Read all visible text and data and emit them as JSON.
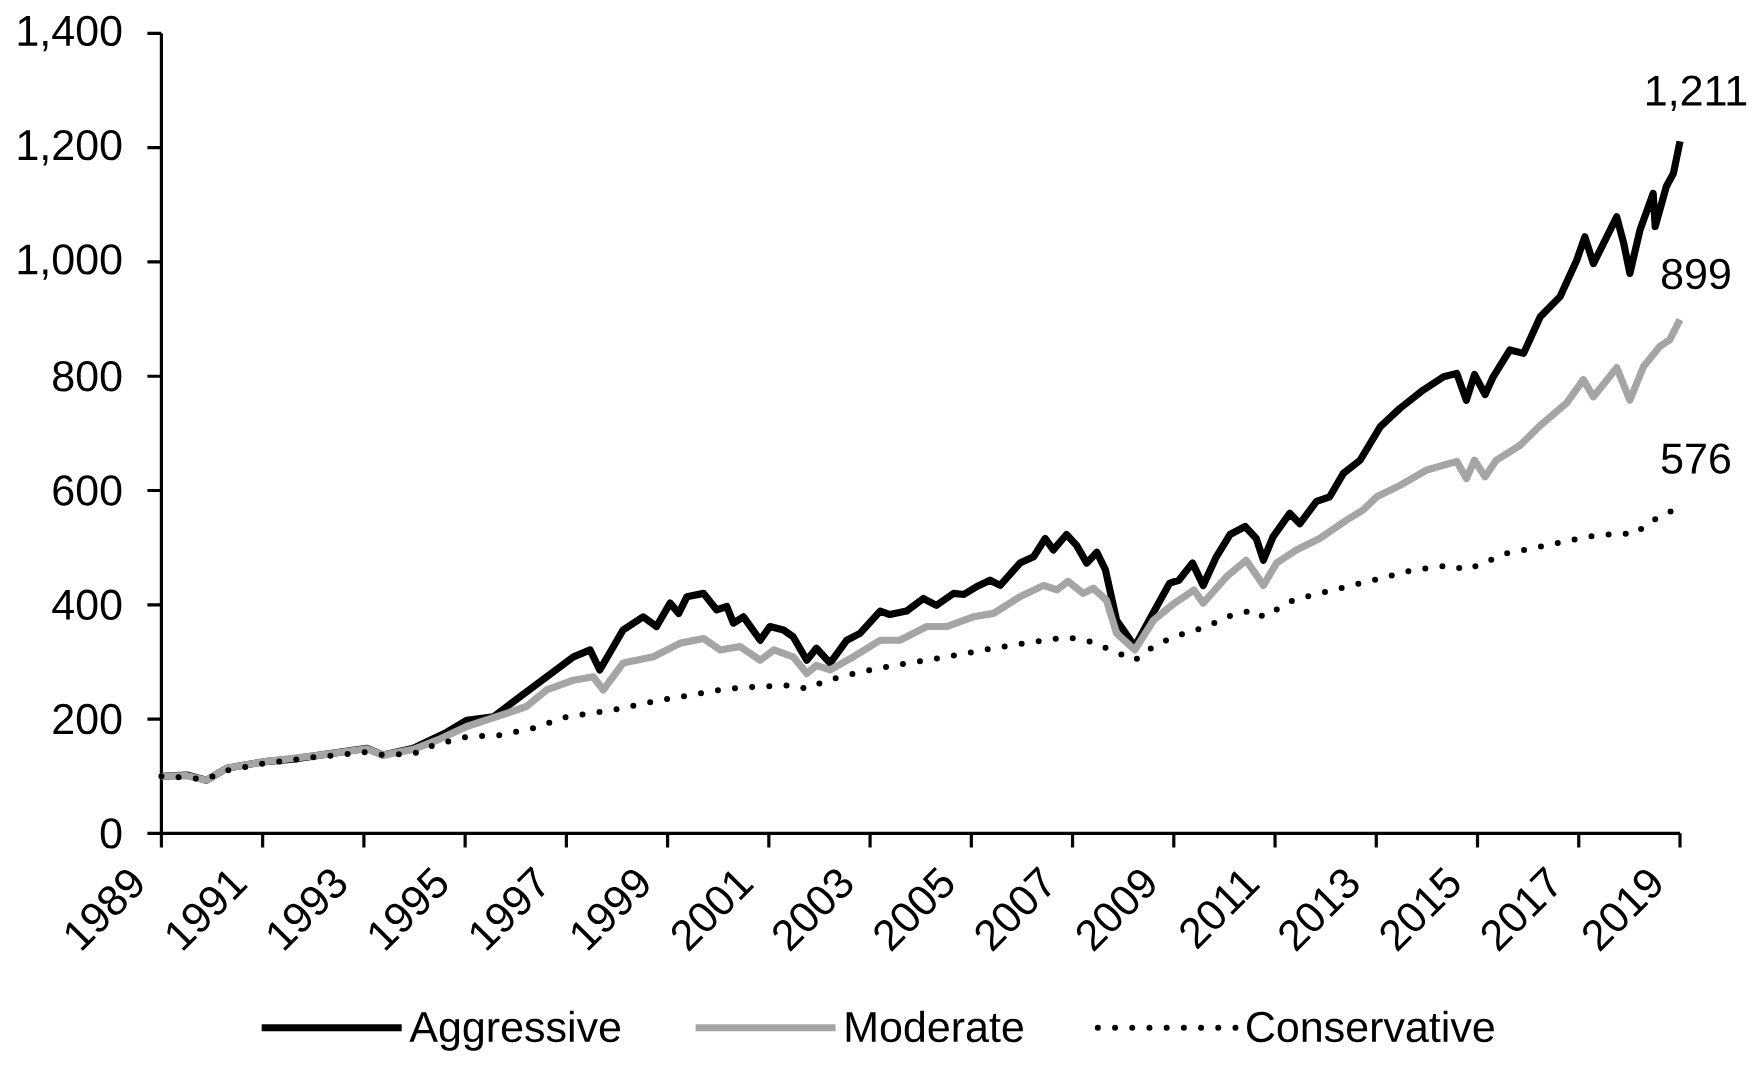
{
  "chart_data": {
    "type": "line",
    "xlim": [
      1989,
      2019
    ],
    "xticks": [
      1989,
      1991,
      1993,
      1995,
      1997,
      1999,
      2001,
      2003,
      2005,
      2007,
      2009,
      2011,
      2013,
      2015,
      2017,
      2019
    ],
    "ylim": [
      0,
      1400
    ],
    "yticks": [
      0,
      200,
      400,
      600,
      800,
      {
        "value": 1000,
        "label": "1,000"
      },
      {
        "value": 1200,
        "label": "1,200"
      },
      {
        "value": 1400,
        "label": "1,400"
      }
    ],
    "legend": "bottom",
    "series": [
      {
        "name": "Aggressive",
        "color": "#000000",
        "line_style": "solid",
        "x": [
          1989.0,
          1989.5,
          1989.89,
          1990.29,
          1991.0,
          1991.6,
          1992.13,
          1993.06,
          1993.38,
          1993.98,
          1994.1,
          1994.6,
          1995.03,
          1995.56,
          1996.08,
          1996.61,
          1997.14,
          1997.47,
          1997.66,
          1998.12,
          1998.52,
          1998.78,
          1999.05,
          1999.22,
          1999.38,
          1999.71,
          1999.97,
          2000.17,
          2000.3,
          2000.5,
          2000.83,
          2001.02,
          2001.29,
          2001.48,
          2001.75,
          2001.94,
          2002.21,
          2002.54,
          2002.8,
          2003.2,
          2003.39,
          2003.72,
          2004.05,
          2004.31,
          2004.65,
          2004.85,
          2005.11,
          2005.37,
          2005.57,
          2005.96,
          2006.23,
          2006.46,
          2006.62,
          2006.88,
          2007.08,
          2007.28,
          2007.48,
          2007.65,
          2007.87,
          2008.23,
          2008.6,
          2008.92,
          2009.1,
          2009.37,
          2009.58,
          2009.84,
          2010.11,
          2010.41,
          2010.63,
          2010.77,
          2010.96,
          2011.29,
          2011.49,
          2011.82,
          2012.08,
          2012.35,
          2012.68,
          2013.08,
          2013.47,
          2013.93,
          2014.33,
          2014.59,
          2014.78,
          2014.94,
          2015.15,
          2015.31,
          2015.64,
          2015.91,
          2016.24,
          2016.63,
          2016.96,
          2017.12,
          2017.29,
          2017.75,
          2017.89,
          2018.01,
          2018.21,
          2018.47,
          2018.51,
          2018.73,
          2018.87,
          2019.0
        ],
        "values": [
          100,
          102,
          93,
          114,
          125,
          130,
          137,
          149,
          137,
          149,
          154,
          175,
          198,
          204,
          239,
          274,
          309,
          321,
          286,
          356,
          379,
          362,
          403,
          385,
          414,
          420,
          391,
          397,
          368,
          379,
          338,
          362,
          356,
          344,
          303,
          324,
          298,
          338,
          350,
          389,
          383,
          389,
          411,
          399,
          420,
          418,
          432,
          443,
          434,
          473,
          484,
          516,
          496,
          523,
          504,
          473,
          492,
          461,
          373,
          327,
          387,
          438,
          443,
          473,
          434,
          484,
          523,
          537,
          516,
          478,
          519,
          560,
          542,
          581,
          589,
          630,
          653,
          712,
          744,
          776,
          799,
          805,
          758,
          803,
          768,
          799,
          846,
          840,
          904,
          939,
          1003,
          1044,
          997,
          1079,
          1032,
          980,
          1056,
          1120,
          1062,
          1132,
          1155,
          1211
        ],
        "value_labels": [
          null,
          null,
          null,
          null,
          null,
          null,
          null,
          null,
          null,
          null,
          null,
          null,
          null,
          null,
          null,
          null,
          null,
          null,
          null,
          null,
          null,
          null,
          null,
          null,
          null,
          null,
          null,
          null,
          null,
          null,
          null,
          null,
          null,
          null,
          null,
          null,
          null,
          null,
          null,
          null,
          null,
          null,
          null,
          null,
          null,
          null,
          null,
          null,
          null,
          null,
          null,
          null,
          null,
          null,
          null,
          null,
          null,
          null,
          null,
          null,
          null,
          null,
          null,
          null,
          null,
          null,
          null,
          null,
          null,
          null,
          null,
          null,
          null,
          null,
          null,
          null,
          null,
          null,
          null,
          null,
          null,
          null,
          null,
          null,
          null,
          null,
          null,
          null,
          null,
          null,
          null,
          null,
          null,
          null,
          null,
          null,
          null,
          null,
          null,
          null,
          null,
          "1,211"
        ]
      },
      {
        "name": "Moderate",
        "color": "#a5a5a5",
        "line_style": "solid",
        "x": [
          1989.0,
          1989.5,
          1989.89,
          1990.29,
          1991.0,
          1992.13,
          1993.06,
          1993.38,
          1993.98,
          1994.5,
          1995.03,
          1995.82,
          1996.21,
          1996.61,
          1997.14,
          1997.53,
          1997.73,
          1998.12,
          1998.72,
          1999.25,
          1999.71,
          2000.04,
          2000.43,
          2000.83,
          2001.1,
          2001.48,
          2001.75,
          2001.94,
          2002.21,
          2002.67,
          2003.2,
          2003.59,
          2004.12,
          2004.51,
          2005.04,
          2005.44,
          2005.96,
          2006.43,
          2006.69,
          2006.91,
          2007.21,
          2007.41,
          2007.67,
          2007.87,
          2008.23,
          2008.6,
          2009.0,
          2009.4,
          2009.58,
          2010.04,
          2010.43,
          2010.77,
          2011.03,
          2011.42,
          2011.88,
          2012.41,
          2012.74,
          2013.01,
          2013.47,
          2014.0,
          2014.59,
          2014.78,
          2014.94,
          2015.15,
          2015.37,
          2015.84,
          2016.24,
          2016.76,
          2017.09,
          2017.29,
          2017.75,
          2018.01,
          2018.28,
          2018.6,
          2018.8,
          2019.0
        ],
        "values": [
          100,
          101,
          93,
          114,
          125,
          137,
          148,
          137,
          147,
          165,
          187,
          210,
          222,
          251,
          268,
          274,
          251,
          298,
          309,
          333,
          341,
          321,
          327,
          303,
          321,
          309,
          280,
          294,
          286,
          309,
          338,
          338,
          362,
          362,
          379,
          385,
          414,
          434,
          426,
          441,
          420,
          429,
          408,
          350,
          321,
          373,
          402,
          426,
          403,
          449,
          478,
          434,
          473,
          496,
          516,
          548,
          566,
          589,
          609,
          636,
          651,
          621,
          653,
          624,
          653,
          679,
          714,
          753,
          794,
          764,
          815,
          758,
          817,
          852,
          864,
          899
        ],
        "value_labels": [
          null,
          null,
          null,
          null,
          null,
          null,
          null,
          null,
          null,
          null,
          null,
          null,
          null,
          null,
          null,
          null,
          null,
          null,
          null,
          null,
          null,
          null,
          null,
          null,
          null,
          null,
          null,
          null,
          null,
          null,
          null,
          null,
          null,
          null,
          null,
          null,
          null,
          null,
          null,
          null,
          null,
          null,
          null,
          null,
          null,
          null,
          null,
          null,
          null,
          null,
          null,
          null,
          null,
          null,
          null,
          null,
          null,
          null,
          null,
          null,
          null,
          null,
          null,
          null,
          null,
          null,
          null,
          null,
          null,
          null,
          null,
          null,
          null,
          null,
          null,
          "899"
        ]
      },
      {
        "name": "Conservative",
        "color": "#000000",
        "line_style": "dotted",
        "x": [
          1989.0,
          1989.89,
          1990.29,
          1991.0,
          1992.0,
          1993.0,
          1993.38,
          1994.0,
          1994.37,
          1995.03,
          1995.69,
          1996.35,
          1997.01,
          1997.93,
          1998.85,
          1999.52,
          2000.17,
          2000.83,
          2001.48,
          2001.75,
          2002.15,
          2002.8,
          2003.46,
          2004.12,
          2004.78,
          2005.44,
          2006.23,
          2006.88,
          2007.28,
          2007.67,
          2008.23,
          2008.6,
          2009.0,
          2009.66,
          2010.04,
          2010.57,
          2010.77,
          2011.36,
          2012.15,
          2012.94,
          2013.73,
          2014.46,
          2014.78,
          2015.57,
          2016.37,
          2017.16,
          2017.82,
          2018.08,
          2018.47,
          2018.87,
          2019.0
        ],
        "values": [
          100,
          95,
          110,
          122,
          133,
          142,
          137,
          140,
          154,
          169,
          172,
          184,
          204,
          216,
          233,
          243,
          253,
          257,
          259,
          253,
          268,
          282,
          294,
          303,
          313,
          324,
          335,
          343,
          338,
          324,
          303,
          327,
          344,
          362,
          379,
          391,
          379,
          408,
          426,
          443,
          461,
          469,
          461,
          490,
          504,
          519,
          525,
          523,
          548,
          566,
          576
        ],
        "value_labels": [
          null,
          null,
          null,
          null,
          null,
          null,
          null,
          null,
          null,
          null,
          null,
          null,
          null,
          null,
          null,
          null,
          null,
          null,
          null,
          null,
          null,
          null,
          null,
          null,
          null,
          null,
          null,
          null,
          null,
          null,
          null,
          null,
          null,
          null,
          null,
          null,
          null,
          null,
          null,
          null,
          null,
          null,
          null,
          null,
          null,
          null,
          null,
          null,
          null,
          null,
          "576"
        ]
      }
    ]
  }
}
